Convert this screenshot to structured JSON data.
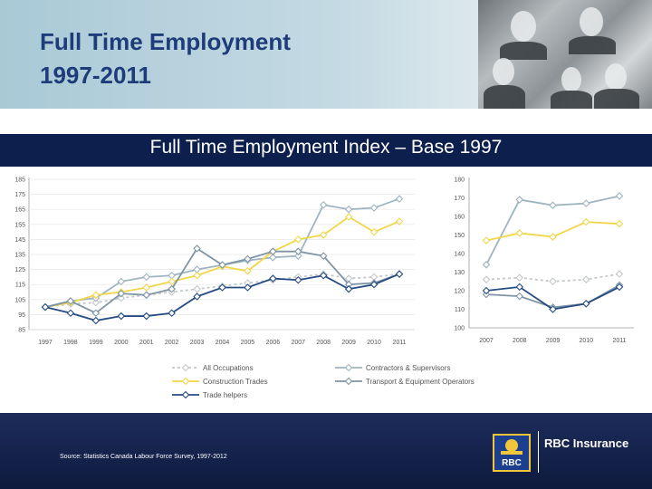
{
  "slide": {
    "title_line1": "Full Time Employment",
    "title_line2": "1997-2011",
    "chart_title": "Full Time Employment Index – Base 1997",
    "source": "Source: Statistics Canada Labour Force Survey, 1997-2012",
    "brand": "RBC Insurance",
    "logo_text": "RBC"
  },
  "colors": {
    "all_occupations": "#c4c8ca",
    "contractors": "#9eb5c1",
    "construction": "#f2d64a",
    "transport": "#7e95a5",
    "trades_helpers": "#274c82",
    "header_title": "#1f3c7a",
    "band": "#0d1f4c"
  },
  "chart_data": [
    {
      "type": "line",
      "x": [
        "1997",
        "1998",
        "1999",
        "2000",
        "2001",
        "2002",
        "2003",
        "2004",
        "2005",
        "2006",
        "2007",
        "2008",
        "2009",
        "2010",
        "2011"
      ],
      "ylim": [
        85,
        185
      ],
      "yticks": [
        "85",
        "95",
        "105",
        "115",
        "125",
        "135",
        "145",
        "155",
        "165",
        "175",
        "185"
      ],
      "grid": true,
      "series": [
        {
          "name": "All Occupations",
          "values": [
            100,
            102,
            103,
            106,
            108,
            110,
            112,
            114,
            116,
            118,
            120,
            122,
            119,
            120,
            122
          ],
          "style": "dashed",
          "colorKey": "all_occupations"
        },
        {
          "name": "Contractors & Supervisors",
          "values": [
            100,
            104,
            106,
            117,
            120,
            121,
            125,
            128,
            131,
            133,
            134,
            168,
            165,
            166,
            172
          ],
          "style": "solid",
          "colorKey": "contractors"
        },
        {
          "name": "Construction Trades",
          "values": [
            100,
            103,
            108,
            110,
            113,
            117,
            121,
            127,
            124,
            137,
            145,
            148,
            160,
            150,
            157
          ],
          "style": "solid",
          "colorKey": "construction"
        },
        {
          "name": "Transport & Equipment Operators",
          "values": [
            100,
            104,
            96,
            109,
            108,
            112,
            139,
            128,
            132,
            137,
            137,
            134,
            115,
            116,
            122
          ],
          "style": "solid",
          "colorKey": "transport"
        },
        {
          "name": "Trade helpers",
          "values": [
            100,
            96,
            91,
            94,
            94,
            96,
            107,
            113,
            113,
            119,
            118,
            121,
            112,
            115,
            122
          ],
          "style": "solid",
          "colorKey": "trades_helpers"
        }
      ]
    },
    {
      "type": "line",
      "x": [
        "2007",
        "2008",
        "2009",
        "2010",
        "2011"
      ],
      "ylim": [
        100,
        180
      ],
      "yticks": [
        "100",
        "110",
        "120",
        "130",
        "140",
        "150",
        "160",
        "170",
        "180"
      ],
      "grid": false,
      "series": [
        {
          "name": "All Occupations",
          "values": [
            126,
            127,
            125,
            126,
            129
          ],
          "style": "dashed",
          "colorKey": "all_occupations"
        },
        {
          "name": "Contractors & Supervisors",
          "values": [
            134,
            169,
            166,
            167,
            171
          ],
          "style": "solid",
          "colorKey": "contractors"
        },
        {
          "name": "Construction Trades",
          "values": [
            147,
            151,
            149,
            157,
            156
          ],
          "style": "solid",
          "colorKey": "construction"
        },
        {
          "name": "Transport & Equipment Operators",
          "values": [
            118,
            117,
            111,
            113,
            123
          ],
          "style": "solid",
          "colorKey": "transport"
        },
        {
          "name": "Trade helpers",
          "values": [
            120,
            122,
            110,
            113,
            122
          ],
          "style": "solid",
          "colorKey": "trades_helpers"
        }
      ]
    }
  ],
  "legend": [
    {
      "label": "All Occupations",
      "colorKey": "all_occupations",
      "style": "dashed"
    },
    {
      "label": "Contractors & Supervisors",
      "colorKey": "contractors",
      "style": "solid"
    },
    {
      "label": "Construction Trades",
      "colorKey": "construction",
      "style": "solid"
    },
    {
      "label": "Transport & Equipment Operators",
      "colorKey": "transport",
      "style": "solid"
    },
    {
      "label": "Trade helpers",
      "colorKey": "trades_helpers",
      "style": "solid"
    }
  ]
}
